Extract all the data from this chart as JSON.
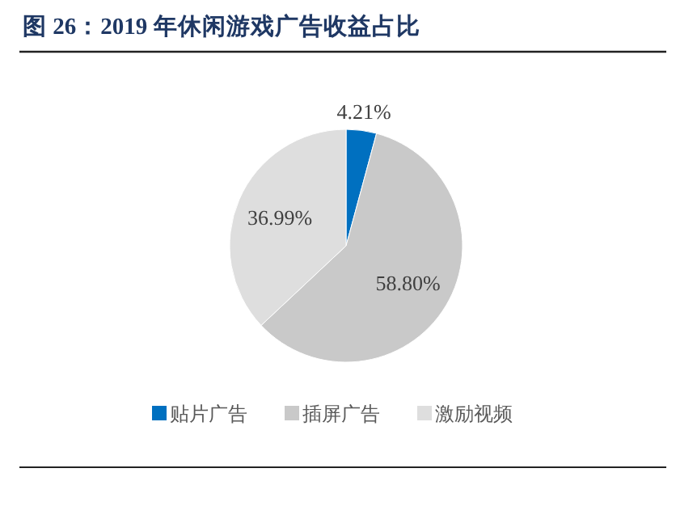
{
  "chart_data": {
    "type": "pie",
    "title": "图 26：2019 年休闲游戏广告收益占比",
    "categories": [
      "贴片广告",
      "插屏广告",
      "激励视频"
    ],
    "values": [
      4.21,
      58.8,
      36.99
    ],
    "value_labels": [
      "4.21%",
      "58.80%",
      "36.99%"
    ],
    "colors": [
      "#0070c0",
      "#c9c9c9",
      "#dedede"
    ],
    "legend": "bottom"
  }
}
